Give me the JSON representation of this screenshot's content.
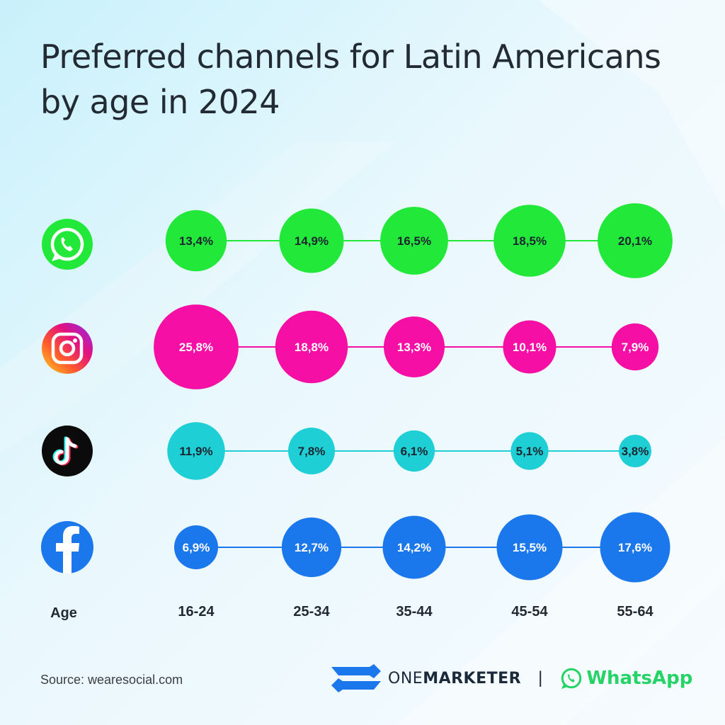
{
  "title": "Preferred channels for Latin Americans by age in 2024",
  "source": "Source: wearesocial.com",
  "brand": {
    "name_light": "ONE",
    "name_bold": "MARKETER",
    "separator": "|",
    "partner": "WhatsApp"
  },
  "colors": {
    "whatsapp": "#22e83a",
    "instagram": "#f50fa5",
    "tiktok": "#1fcfd6",
    "facebook": "#1b77ec",
    "text": "#222a33"
  },
  "chart_data": {
    "type": "bubble",
    "x_label": "Age",
    "categories": [
      "16-24",
      "25-34",
      "35-44",
      "45-54",
      "55-64"
    ],
    "series": [
      {
        "icon": "whatsapp-icon",
        "values": [
          13.4,
          14.9,
          16.5,
          18.5,
          20.1
        ],
        "labels": [
          "13,4%",
          "14,9%",
          "16,5%",
          "18,5%",
          "20,1%"
        ]
      },
      {
        "icon": "instagram-icon",
        "values": [
          25.8,
          18.8,
          13.3,
          10.1,
          7.9
        ],
        "labels": [
          "25,8%",
          "18,8%",
          "13,3%",
          "10,1%",
          "7,9%"
        ]
      },
      {
        "icon": "tiktok-icon",
        "values": [
          11.9,
          7.8,
          6.1,
          5.1,
          3.8
        ],
        "labels": [
          "11,9%",
          "7,8%",
          "6,1%",
          "5,1%",
          "3,8%"
        ]
      },
      {
        "icon": "facebook-icon",
        "values": [
          6.9,
          12.7,
          14.2,
          15.5,
          17.6
        ],
        "labels": [
          "6,9%",
          "12,7%",
          "14,2%",
          "15,5%",
          "17,6%"
        ]
      }
    ]
  }
}
